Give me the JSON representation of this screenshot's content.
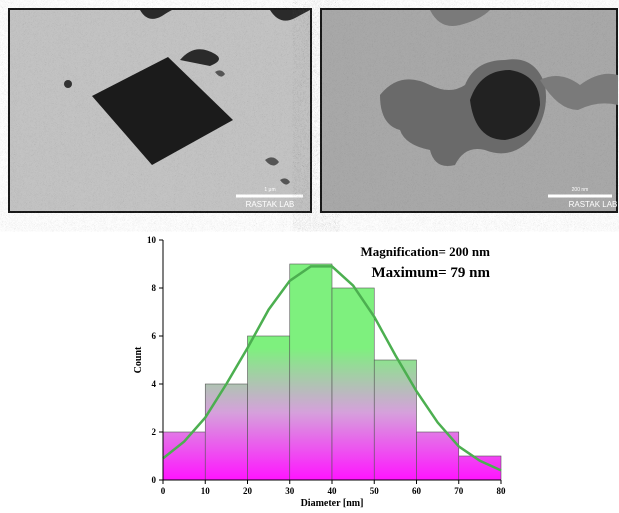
{
  "images": [
    {
      "scale_label": "1 μm",
      "watermark": "RASTAK LAB"
    },
    {
      "scale_label": "200 nm",
      "watermark": "RASTAK LAB"
    }
  ],
  "chart_data": {
    "type": "histogram",
    "annotations": [
      "Magnification= 200 nm",
      "Maximum= 79 nm"
    ],
    "x_label": "Diameter [nm]",
    "y_label": "Count",
    "bins": [
      0,
      10,
      20,
      30,
      40,
      50,
      60,
      70,
      80
    ],
    "values": [
      2,
      4,
      6,
      9,
      8,
      5,
      2,
      1
    ],
    "colors": [
      "#7ef07e",
      "#d6a0dc",
      "#ff14ff"
    ],
    "fit": {
      "color": "#4caf50",
      "x": [
        0,
        5,
        10,
        15,
        20,
        25,
        30,
        35,
        40,
        45,
        50,
        55,
        60,
        65,
        70,
        75,
        80
      ],
      "values": [
        0.9,
        1.6,
        2.6,
        4.0,
        5.5,
        7.1,
        8.3,
        8.9,
        8.9,
        8.1,
        6.8,
        5.2,
        3.7,
        2.4,
        1.4,
        0.8,
        0.4
      ]
    },
    "xlim": [
      0,
      80
    ],
    "ylim": [
      0,
      10
    ],
    "xticks": [
      0,
      10,
      20,
      30,
      40,
      50,
      60,
      70,
      80
    ],
    "yticks": [
      0,
      2,
      4,
      6,
      8,
      10
    ]
  }
}
